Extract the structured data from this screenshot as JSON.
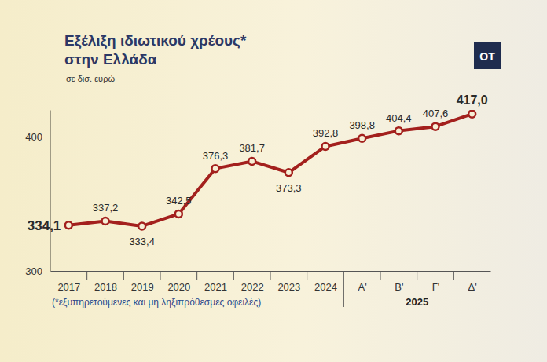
{
  "chart_data": {
    "type": "line",
    "title": "Εξέλιξη ιδιωτικού χρέους* στην Ελλάδα",
    "subtitle": "σε δισ. ευρώ",
    "logo": "OT",
    "note": "(*εξυπηρετούμενες και μη ληξιπρόθεσμες οφειλές)",
    "x_group_label": "2025",
    "categories": [
      "2017",
      "2018",
      "2019",
      "2020",
      "2021",
      "2022",
      "2023",
      "2024",
      "Α'",
      "Β'",
      "Γ'",
      "Δ'"
    ],
    "values": [
      334.1,
      337.2,
      333.4,
      342.5,
      376.3,
      381.7,
      373.3,
      392.8,
      398.8,
      404.4,
      407.6,
      417.0
    ],
    "value_labels": [
      "334,1",
      "337,2",
      "333,4",
      "342,5",
      "376,3",
      "381,7",
      "373,3",
      "392,8",
      "398,8",
      "404,4",
      "407,6",
      "417,0"
    ],
    "color": "#a3201d",
    "marker": "circle",
    "data_labels": true,
    "grid": false,
    "ylim": [
      300,
      420
    ],
    "yticks": [
      300,
      400
    ]
  }
}
